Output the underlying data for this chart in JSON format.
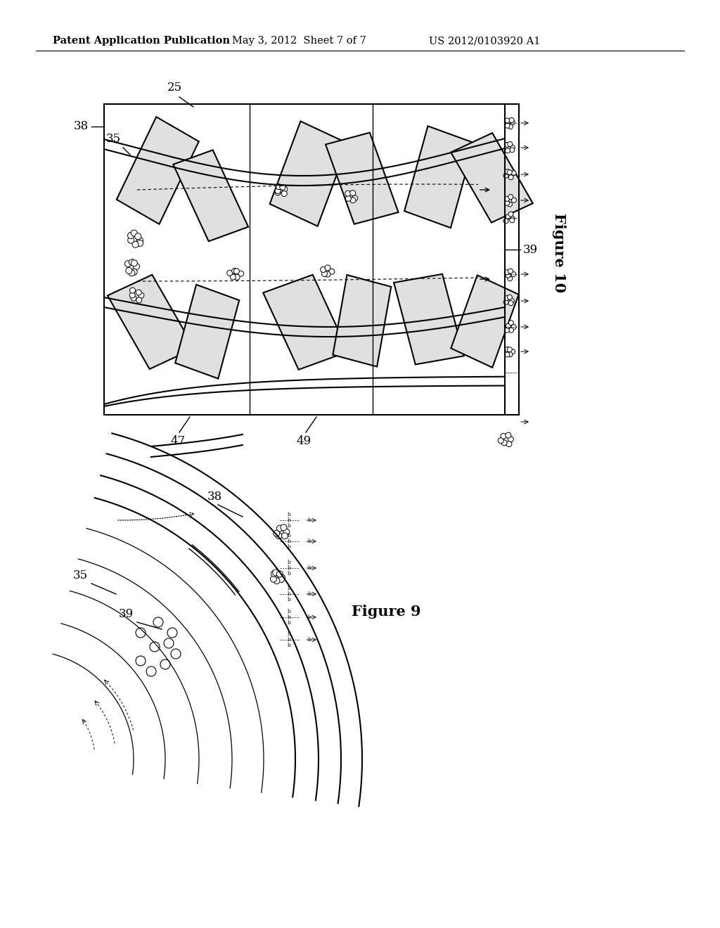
{
  "header_left": "Patent Application Publication",
  "header_mid": "May 3, 2012  Sheet 7 of 7",
  "header_right": "US 2012/0103920 A1",
  "fig10_label": "Figure 10",
  "fig9_label": "Figure 9",
  "background_color": "#ffffff",
  "line_color": "#000000",
  "header_fontsize": 10.5,
  "figure_label_fontsize": 15
}
